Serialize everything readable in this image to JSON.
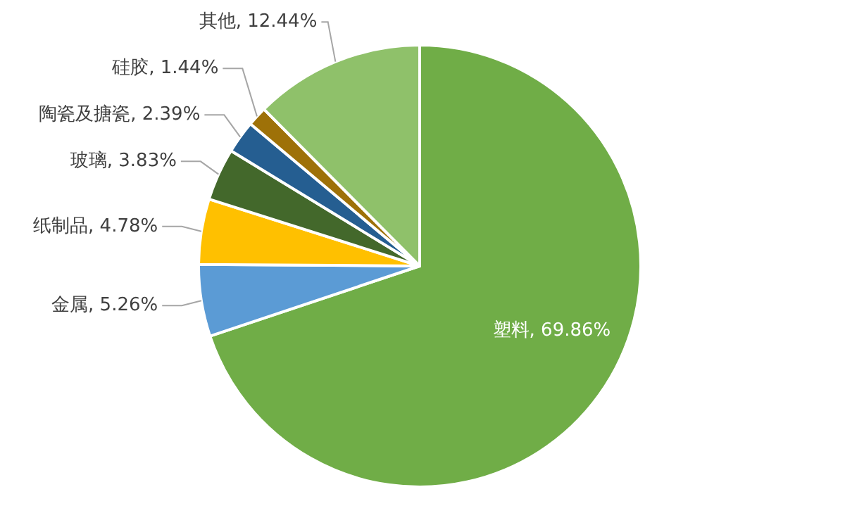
{
  "chart_data": {
    "type": "pie",
    "categories": [
      "塑料",
      "金属",
      "纸制品",
      "玻璃",
      "陶瓷及搪瓷",
      "硅胶",
      "其他"
    ],
    "values": [
      69.86,
      5.26,
      4.78,
      3.83,
      2.39,
      1.44,
      12.44
    ],
    "value_labels": [
      ", 69.86%",
      ", 5.26%",
      ", 4.78%",
      ", 3.83%",
      ", 2.39%",
      ", 1.44%",
      ", 12.44%"
    ],
    "colors": [
      "#70ad47",
      "#5b9bd5",
      "#ffc000",
      "#43682b",
      "#255e91",
      "#9e7108",
      "#8fc16a"
    ]
  }
}
